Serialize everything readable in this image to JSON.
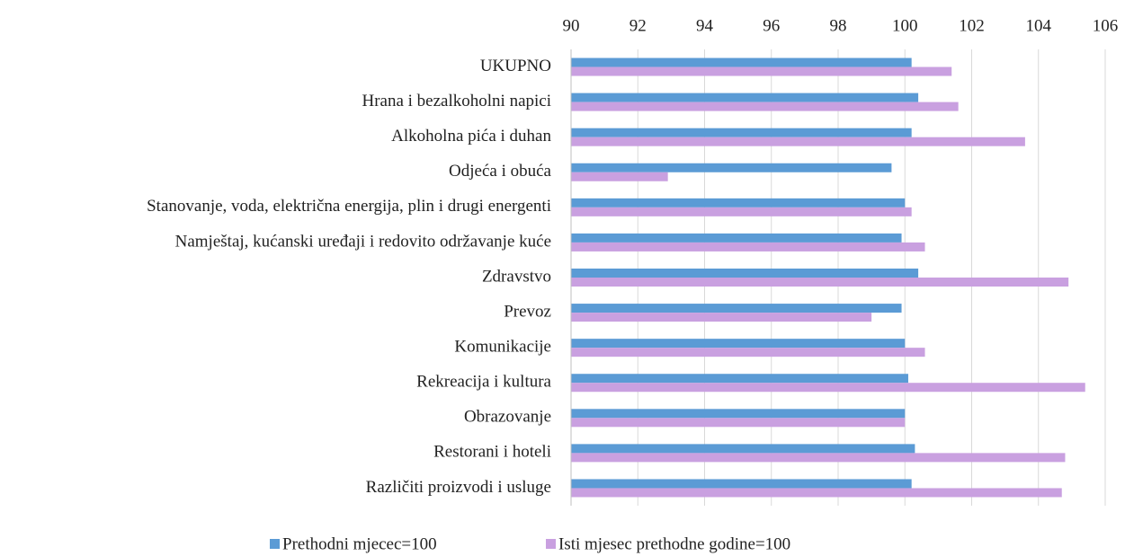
{
  "chart_data": {
    "type": "hbar",
    "categories": [
      "UKUPNO",
      "Hrana i bezalkoholni napici",
      "Alkoholna pića i duhan",
      "Odjeća i obuća",
      "Stanovanje, voda, električna energija, plin i drugi energenti",
      "Namještaj, kućanski uređaji i redovito održavanje kuće",
      "Zdravstvo",
      "Prevoz",
      "Komunikacije",
      "Rekreacija i kultura",
      "Obrazovanje",
      "Restorani i hoteli",
      "Različiti proizvodi i usluge"
    ],
    "series": [
      {
        "name": "Prethodni mjecec=100",
        "color": "#5b9bd5",
        "values": [
          100.2,
          100.4,
          100.2,
          99.6,
          100.0,
          99.9,
          100.4,
          99.9,
          100.0,
          100.1,
          100.0,
          100.3,
          100.2
        ]
      },
      {
        "name": "Isti mjesec prethodne godine=100",
        "color": "#c9a0e0",
        "values": [
          101.4,
          101.6,
          103.6,
          92.9,
          100.2,
          100.6,
          104.9,
          99.0,
          100.6,
          105.4,
          100.0,
          104.8,
          104.7
        ]
      }
    ],
    "xlim": [
      90,
      106
    ],
    "xticks": [
      90,
      92,
      94,
      96,
      98,
      100,
      102,
      104,
      106
    ],
    "grid": true,
    "legend": "bottom"
  }
}
